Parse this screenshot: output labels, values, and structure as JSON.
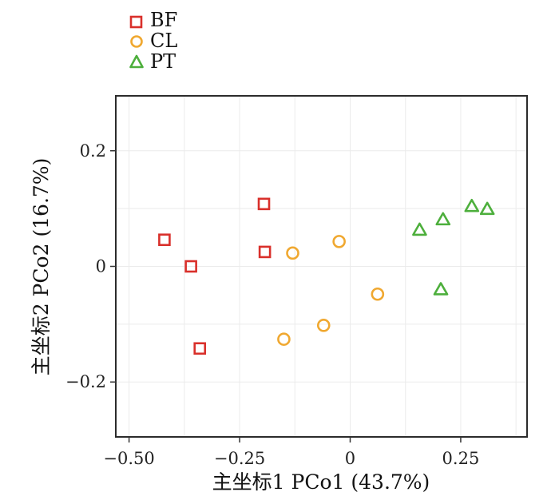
{
  "chart_data": {
    "type": "scatter",
    "xlabel": "主坐标1  PCo1 (43.7%)",
    "ylabel": "主坐标2  PCo2 (16.7%)",
    "xlim": [
      -0.53,
      0.4
    ],
    "ylim": [
      -0.295,
      0.295
    ],
    "x_ticks": [
      -0.5,
      -0.25,
      0,
      0.25
    ],
    "x_tick_labels": [
      "−0.50",
      "−0.25",
      "0",
      "0.25"
    ],
    "y_ticks": [
      -0.2,
      0,
      0.2
    ],
    "y_tick_labels": [
      "−0.2",
      "0",
      "0.2"
    ],
    "grid": true,
    "legend_position": "top-left, outside plot",
    "series": [
      {
        "name": "BF",
        "marker": "square",
        "color": "#d9302b",
        "points": [
          {
            "x": -0.42,
            "y": 0.046
          },
          {
            "x": -0.36,
            "y": 0.0
          },
          {
            "x": -0.34,
            "y": -0.142
          },
          {
            "x": -0.195,
            "y": 0.108
          },
          {
            "x": -0.193,
            "y": 0.025
          }
        ]
      },
      {
        "name": "CL",
        "marker": "circle",
        "color": "#f0a830",
        "points": [
          {
            "x": -0.13,
            "y": 0.023
          },
          {
            "x": -0.025,
            "y": 0.043
          },
          {
            "x": 0.062,
            "y": -0.048
          },
          {
            "x": -0.06,
            "y": -0.102
          },
          {
            "x": -0.15,
            "y": -0.126
          }
        ]
      },
      {
        "name": "PT",
        "marker": "triangle",
        "color": "#4daf3c",
        "points": [
          {
            "x": 0.157,
            "y": 0.063
          },
          {
            "x": 0.21,
            "y": 0.081
          },
          {
            "x": 0.275,
            "y": 0.104
          },
          {
            "x": 0.31,
            "y": 0.099
          },
          {
            "x": 0.205,
            "y": -0.04
          }
        ]
      }
    ]
  }
}
